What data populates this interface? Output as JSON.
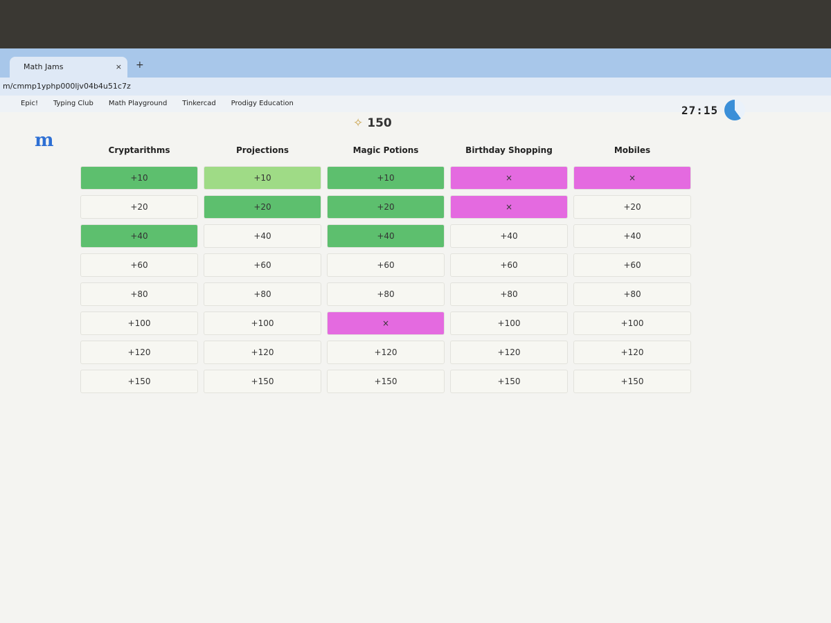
{
  "browser": {
    "tab_title": "Math Jams",
    "url": "m/cmmp1yphp000ljv04b4u51c7z",
    "bookmarks": [
      "Epic!",
      "Typing Club",
      "Math Playground",
      "Tinkercad",
      "Prodigy Education"
    ]
  },
  "header": {
    "score": "150",
    "timer": "27:15"
  },
  "board": {
    "columns": [
      {
        "title": "Cryptarithms",
        "cells": [
          {
            "label": "+10",
            "color": "#5dbf6e"
          },
          {
            "label": "+20",
            "color": "#f7f7f2"
          },
          {
            "label": "+40",
            "color": "#5dbf6e"
          },
          {
            "label": "+60",
            "color": "#f7f7f2"
          },
          {
            "label": "+80",
            "color": "#f7f7f2"
          },
          {
            "label": "+100",
            "color": "#f7f7f2"
          },
          {
            "label": "+120",
            "color": "#f7f7f2"
          },
          {
            "label": "+150",
            "color": "#f7f7f2"
          }
        ]
      },
      {
        "title": "Projections",
        "cells": [
          {
            "label": "+10",
            "color": "#9fdb86"
          },
          {
            "label": "+20",
            "color": "#5dbf6e"
          },
          {
            "label": "+40",
            "color": "#f7f7f2"
          },
          {
            "label": "+60",
            "color": "#f7f7f2"
          },
          {
            "label": "+80",
            "color": "#f7f7f2"
          },
          {
            "label": "+100",
            "color": "#f7f7f2"
          },
          {
            "label": "+120",
            "color": "#f7f7f2"
          },
          {
            "label": "+150",
            "color": "#f7f7f2"
          }
        ]
      },
      {
        "title": "Magic Potions",
        "cells": [
          {
            "label": "+10",
            "color": "#5dbf6e"
          },
          {
            "label": "+20",
            "color": "#5dbf6e"
          },
          {
            "label": "+40",
            "color": "#5dbf6e"
          },
          {
            "label": "+60",
            "color": "#f7f7f2"
          },
          {
            "label": "+80",
            "color": "#f7f7f2"
          },
          {
            "label": "×",
            "color": "#e46ae0"
          },
          {
            "label": "+120",
            "color": "#f7f7f2"
          },
          {
            "label": "+150",
            "color": "#f7f7f2"
          }
        ]
      },
      {
        "title": "Birthday Shopping",
        "cells": [
          {
            "label": "×",
            "color": "#e46ae0"
          },
          {
            "label": "×",
            "color": "#e46ae0"
          },
          {
            "label": "+40",
            "color": "#f7f7f2"
          },
          {
            "label": "+60",
            "color": "#f7f7f2"
          },
          {
            "label": "+80",
            "color": "#f7f7f2"
          },
          {
            "label": "+100",
            "color": "#f7f7f2"
          },
          {
            "label": "+120",
            "color": "#f7f7f2"
          },
          {
            "label": "+150",
            "color": "#f7f7f2"
          }
        ]
      },
      {
        "title": "Mobiles",
        "cells": [
          {
            "label": "×",
            "color": "#e46ae0"
          },
          {
            "label": "+20",
            "color": "#f7f7f2"
          },
          {
            "label": "+40",
            "color": "#f7f7f2"
          },
          {
            "label": "+60",
            "color": "#f7f7f2"
          },
          {
            "label": "+80",
            "color": "#f7f7f2"
          },
          {
            "label": "+100",
            "color": "#f7f7f2"
          },
          {
            "label": "+120",
            "color": "#f7f7f2"
          },
          {
            "label": "+150",
            "color": "#f7f7f2"
          }
        ]
      }
    ]
  }
}
